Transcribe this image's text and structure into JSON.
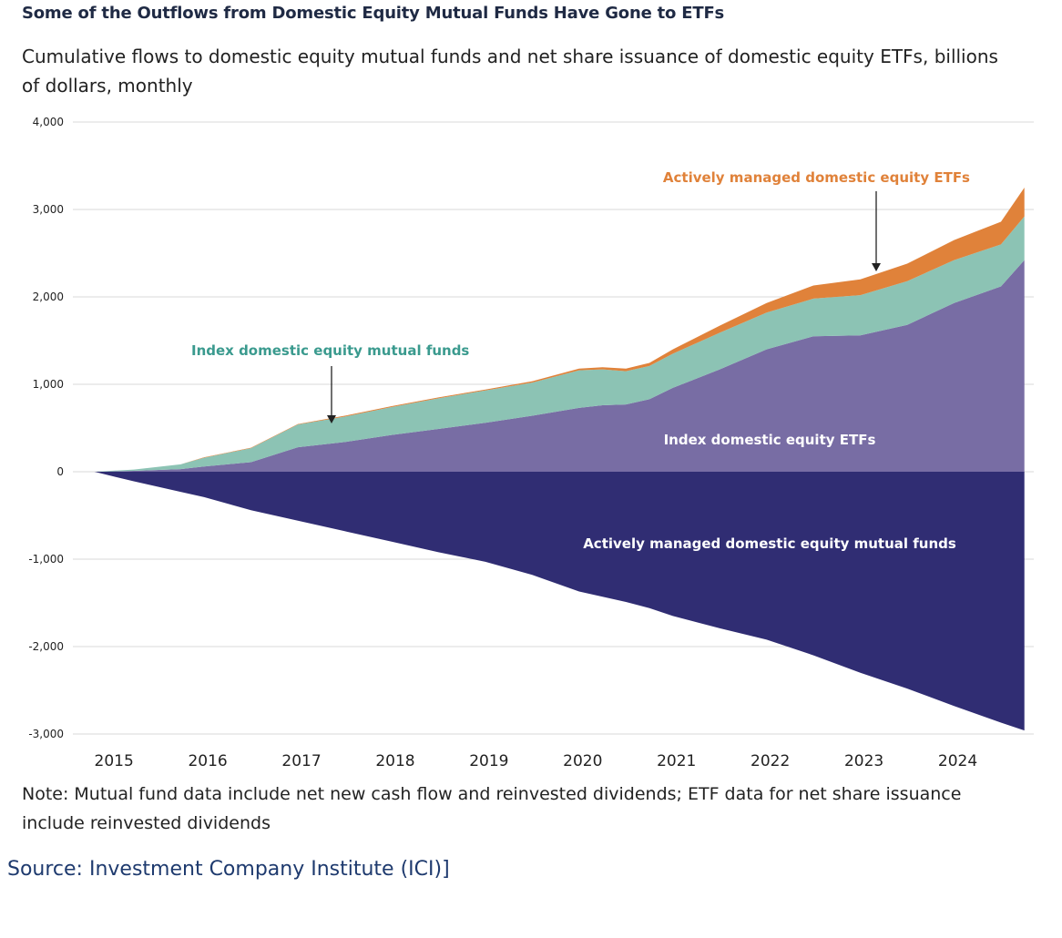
{
  "title": "Some of the Outflows from Domestic Equity Mutual Funds Have Gone to ETFs",
  "subtitle": "Cumulative flows to domestic equity mutual funds and net share issuance of domestic equity ETFs, billions of dollars, monthly",
  "note": "Note: Mutual fund data include net new cash flow and reinvested dividends; ETF data for net share issuance include reinvested dividends",
  "source": "Source: Investment Company Institute (ICI)]",
  "colors": {
    "active_mf": "#302d73",
    "index_etf": "#786da4",
    "index_mf": "#8cc3b4",
    "active_etf": "#e0823a",
    "grid": "#d8d8d8",
    "index_mf_label": "#3a9a8e",
    "active_etf_label": "#e0823a"
  },
  "chart_data": {
    "type": "area",
    "stacked": true,
    "x": [
      2014.83,
      2015.25,
      2015.75,
      2016.0,
      2016.5,
      2017.0,
      2017.5,
      2018.0,
      2018.5,
      2019.0,
      2019.5,
      2020.0,
      2020.25,
      2020.5,
      2020.75,
      2021.0,
      2021.5,
      2022.0,
      2022.5,
      2023.0,
      2023.5,
      2024.0,
      2024.5,
      2024.75
    ],
    "series": [
      {
        "name": "Index domestic equity ETFs",
        "color_key": "index_etf",
        "values": [
          0,
          10,
          30,
          60,
          110,
          280,
          340,
          420,
          490,
          560,
          640,
          730,
          760,
          770,
          830,
          960,
          1170,
          1400,
          1550,
          1560,
          1680,
          1930,
          2120,
          2420
        ]
      },
      {
        "name": "Index domestic equity mutual funds",
        "color_key": "index_mf",
        "values": [
          0,
          15,
          55,
          100,
          160,
          260,
          290,
          320,
          350,
          370,
          380,
          430,
          410,
          380,
          380,
          390,
          420,
          420,
          430,
          460,
          500,
          490,
          480,
          500
        ]
      },
      {
        "name": "Actively managed domestic equity ETFs",
        "color_key": "active_etf",
        "values": [
          0,
          0,
          0,
          5,
          5,
          5,
          10,
          10,
          10,
          10,
          15,
          20,
          25,
          30,
          35,
          50,
          80,
          110,
          150,
          180,
          200,
          230,
          260,
          330
        ]
      },
      {
        "name": "Actively managed domestic equity mutual funds",
        "color_key": "active_mf",
        "values": [
          0,
          -110,
          -230,
          -290,
          -440,
          -560,
          -680,
          -800,
          -920,
          -1030,
          -1180,
          -1370,
          -1430,
          -1490,
          -1560,
          -1650,
          -1790,
          -1920,
          -2100,
          -2300,
          -2480,
          -2680,
          -2870,
          -2960
        ]
      }
    ],
    "xlim": [
      2014.6,
      2024.85
    ],
    "ylim": [
      -3000,
      4000
    ],
    "yticks": [
      4000,
      3000,
      2000,
      1000,
      0,
      -1000,
      -2000,
      -3000
    ],
    "ytick_labels": [
      "4,000",
      "3,000",
      "2,000",
      "1,000",
      "0",
      "-1,000",
      "-2,000",
      "-3,000"
    ],
    "xticks": [
      2015,
      2016,
      2017,
      2018,
      2019,
      2020,
      2021,
      2022,
      2023,
      2024
    ],
    "xtick_labels": [
      "2015",
      "2016",
      "2017",
      "2018",
      "2019",
      "2020",
      "2021",
      "2022",
      "2023",
      "2024"
    ],
    "grid": "horizontal",
    "annotations": [
      {
        "text": "Actively managed domestic equity ETFs",
        "color_key": "active_etf_label",
        "arrow": true
      },
      {
        "text": "Index domestic equity mutual funds",
        "color_key": "index_mf_label",
        "arrow": true
      },
      {
        "text": "Index domestic equity ETFs",
        "color_key": "white",
        "arrow": false
      },
      {
        "text": "Actively managed domestic equity mutual funds",
        "color_key": "white",
        "arrow": false
      }
    ]
  }
}
